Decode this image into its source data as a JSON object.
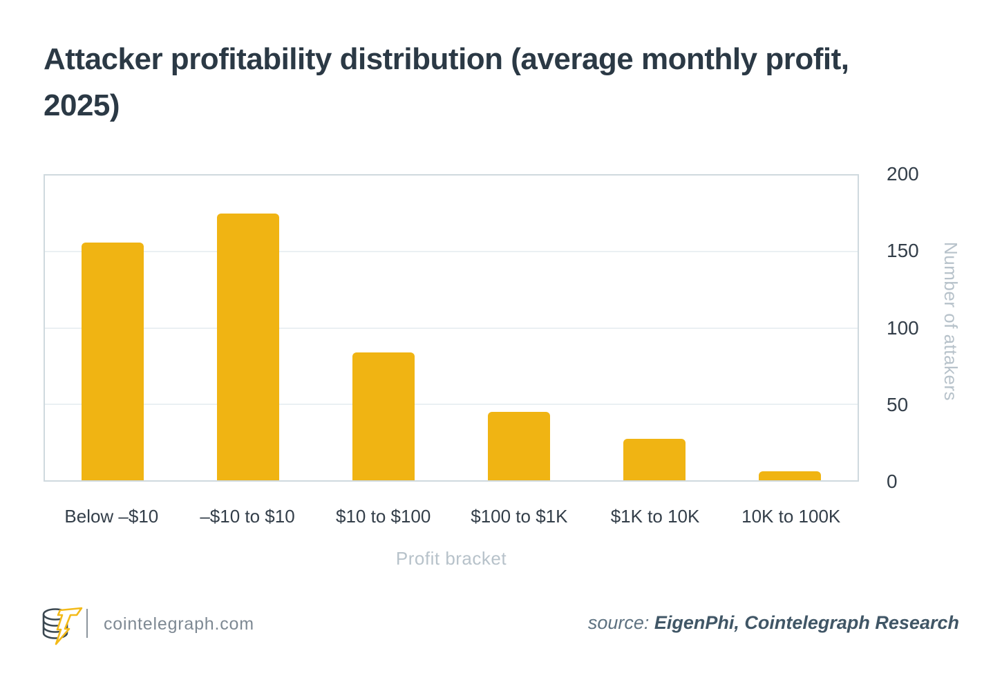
{
  "title": "Attacker profitability distribution (average monthly profit, 2025)",
  "chart_data": {
    "type": "bar",
    "categories": [
      "Below –$10",
      "–$10 to $10",
      "$10 to $100",
      "$100 to $1K",
      "$1K to 10K",
      "10K to 100K"
    ],
    "values": [
      156,
      175,
      84,
      45,
      27,
      6
    ],
    "title": "Attacker profitability distribution (average monthly profit, 2025)",
    "xlabel": "Profit bracket",
    "ylabel": "Number of attakers",
    "ylim": [
      0,
      200
    ],
    "yticks": [
      0,
      50,
      100,
      150,
      200
    ],
    "grid": "horizontal",
    "legend_position": "none",
    "y_axis_side": "right"
  },
  "footer": {
    "site": "cointelegraph.com",
    "source_prefix": "source:",
    "source_value": "EigenPhi, Cointelegraph Research",
    "logo_icon": "cointelegraph-coin-bolt-logo"
  },
  "colors": {
    "bar": "#F0B413",
    "title_text": "#2B3945",
    "tick_text": "#333E49",
    "muted_text": "#B7C2CA",
    "plot_frame": "#CFD9DE",
    "gridline": "#EAF0F3",
    "divider": "#8B949C",
    "site_text": "#7E8993",
    "source_prefix": "#5D7180",
    "source_value": "#405666",
    "logo_dark": "#3A4750",
    "logo_bolt": "#F3BA19"
  }
}
